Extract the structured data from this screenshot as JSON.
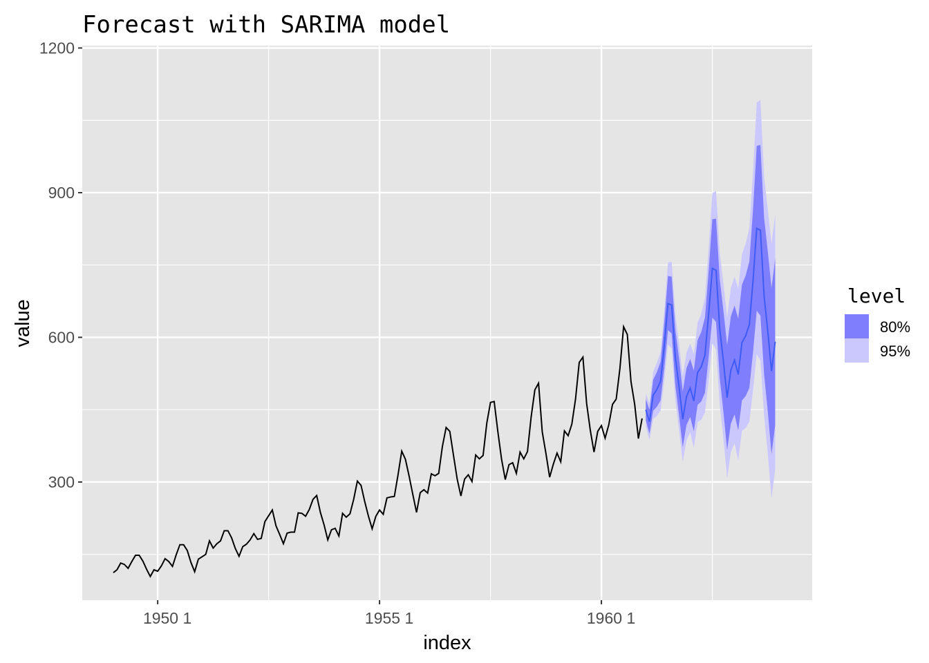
{
  "chart_data": {
    "type": "line",
    "title": "Forecast with SARIMA model",
    "xlabel": "index",
    "ylabel": "value",
    "x_start": 1949,
    "x_step": 0.0833333333,
    "xlim": [
      1948.3,
      1964.75
    ],
    "ylim": [
      55,
      1205
    ],
    "x_ticks": [
      {
        "value": 1950,
        "label": "1950 1"
      },
      {
        "value": 1955,
        "label": "1955 1"
      },
      {
        "value": 1960,
        "label": "1960 1"
      }
    ],
    "y_ticks": [
      300,
      600,
      900,
      1200
    ],
    "series": [
      {
        "values": [
          112,
          118,
          132,
          129,
          121,
          135,
          148,
          148,
          136,
          119,
          104,
          118,
          115,
          126,
          141,
          135,
          125,
          149,
          170,
          170,
          158,
          133,
          114,
          140,
          145,
          150,
          178,
          163,
          172,
          178,
          199,
          199,
          184,
          162,
          146,
          166,
          171,
          180,
          193,
          181,
          183,
          218,
          230,
          242,
          209,
          191,
          172,
          194,
          196,
          196,
          236,
          235,
          229,
          243,
          264,
          272,
          237,
          211,
          180,
          201,
          204,
          188,
          235,
          227,
          234,
          264,
          302,
          293,
          259,
          229,
          203,
          229,
          242,
          233,
          267,
          269,
          270,
          315,
          364,
          347,
          312,
          274,
          237,
          278,
          284,
          277,
          317,
          313,
          318,
          374,
          413,
          405,
          355,
          306,
          271,
          306,
          315,
          301,
          356,
          348,
          355,
          422,
          465,
          467,
          404,
          347,
          305,
          336,
          340,
          318,
          362,
          348,
          363,
          435,
          491,
          505,
          404,
          359,
          310,
          337,
          360,
          342,
          406,
          396,
          420,
          472,
          548,
          559,
          463,
          407,
          362,
          405,
          417,
          391,
          419,
          461,
          472,
          535,
          622,
          606,
          508,
          461,
          390,
          432
        ]
      }
    ],
    "forecast": {
      "mean": [
        450,
        425,
        480,
        492,
        509,
        583,
        670,
        667,
        558,
        497,
        430,
        477,
        495,
        468,
        527,
        539,
        563,
        648,
        743,
        739,
        618,
        550,
        475,
        532,
        553,
        523,
        589,
        603,
        626,
        717,
        826,
        822,
        685,
        612,
        530,
        591
      ],
      "lower80": [
        428,
        400,
        448,
        456,
        469,
        536,
        615,
        608,
        500,
        438,
        372,
        418,
        435,
        405,
        460,
        467,
        485,
        559,
        641,
        632,
        515,
        445,
        366,
        421,
        440,
        407,
        469,
        478,
        495,
        569,
        655,
        645,
        523,
        446,
        358,
        418
      ],
      "upper80": [
        472,
        450,
        512,
        528,
        549,
        630,
        727,
        726,
        616,
        556,
        488,
        536,
        555,
        531,
        594,
        611,
        641,
        737,
        845,
        846,
        721,
        655,
        584,
        643,
        666,
        639,
        709,
        728,
        757,
        865,
        997,
        999,
        847,
        778,
        702,
        764
      ],
      "lower95": [
        416,
        387,
        431,
        437,
        448,
        511,
        585,
        577,
        469,
        407,
        341,
        386,
        403,
        371,
        424,
        429,
        444,
        511,
        587,
        575,
        460,
        389,
        308,
        362,
        380,
        345,
        406,
        412,
        425,
        490,
        565,
        552,
        437,
        358,
        266,
        327
      ],
      "upper95": [
        484,
        463,
        529,
        547,
        570,
        655,
        755,
        757,
        647,
        587,
        519,
        568,
        587,
        565,
        630,
        649,
        682,
        785,
        899,
        903,
        776,
        711,
        642,
        702,
        726,
        701,
        772,
        794,
        827,
        944,
        1087,
        1092,
        933,
        866,
        794,
        855
      ]
    },
    "legend": {
      "title": "level",
      "placement": "right",
      "items": [
        {
          "label": "80%",
          "color": "#7f7ffe"
        },
        {
          "label": "95%",
          "color": "#cbc8fe"
        }
      ]
    },
    "grid": true,
    "colors": {
      "panel": "#e5e5e5",
      "grid_major": "#ffffff",
      "line": "#000000",
      "forecast_line": "#3e5cf5",
      "band80": "#7f7ffe",
      "band95": "#cbc8fe"
    }
  }
}
